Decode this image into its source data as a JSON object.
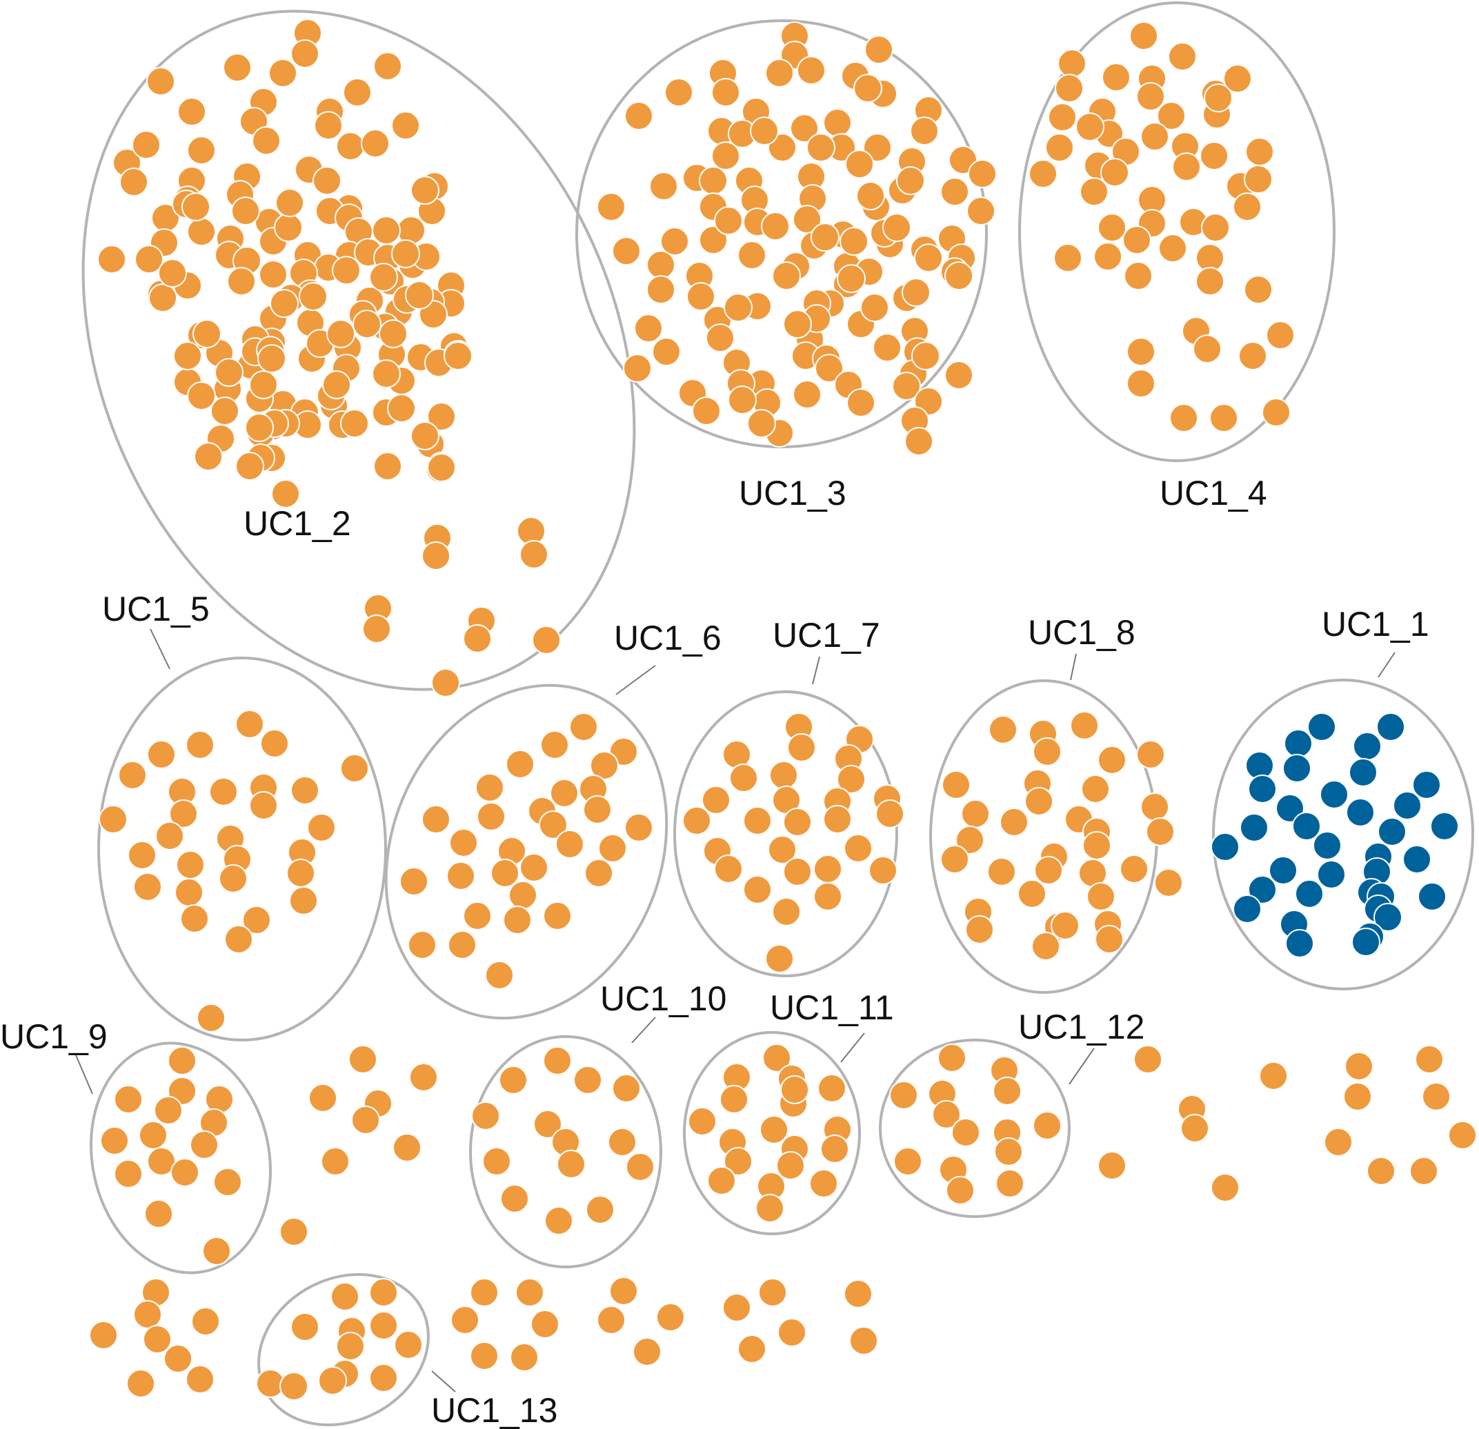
{
  "colors": {
    "node_default": "#f09a3e",
    "node_highlight": "#00629b",
    "outline": "#b3b3b3",
    "label_text": "#111111"
  },
  "clusters": [
    {
      "id": "UC1_1",
      "label": "UC1_1",
      "highlight": true
    },
    {
      "id": "UC1_2",
      "label": "UC1_2",
      "highlight": false
    },
    {
      "id": "UC1_3",
      "label": "UC1_3",
      "highlight": false
    },
    {
      "id": "UC1_4",
      "label": "UC1_4",
      "highlight": false
    },
    {
      "id": "UC1_5",
      "label": "UC1_5",
      "highlight": false
    },
    {
      "id": "UC1_6",
      "label": "UC1_6",
      "highlight": false
    },
    {
      "id": "UC1_7",
      "label": "UC1_7",
      "highlight": false
    },
    {
      "id": "UC1_8",
      "label": "UC1_8",
      "highlight": false
    },
    {
      "id": "UC1_9",
      "label": "UC1_9",
      "highlight": false
    },
    {
      "id": "UC1_10",
      "label": "UC1_10",
      "highlight": false
    },
    {
      "id": "UC1_11",
      "label": "UC1_11",
      "highlight": false
    },
    {
      "id": "UC1_12",
      "label": "UC1_12",
      "highlight": false
    },
    {
      "id": "UC1_13",
      "label": "UC1_13",
      "highlight": false
    }
  ]
}
